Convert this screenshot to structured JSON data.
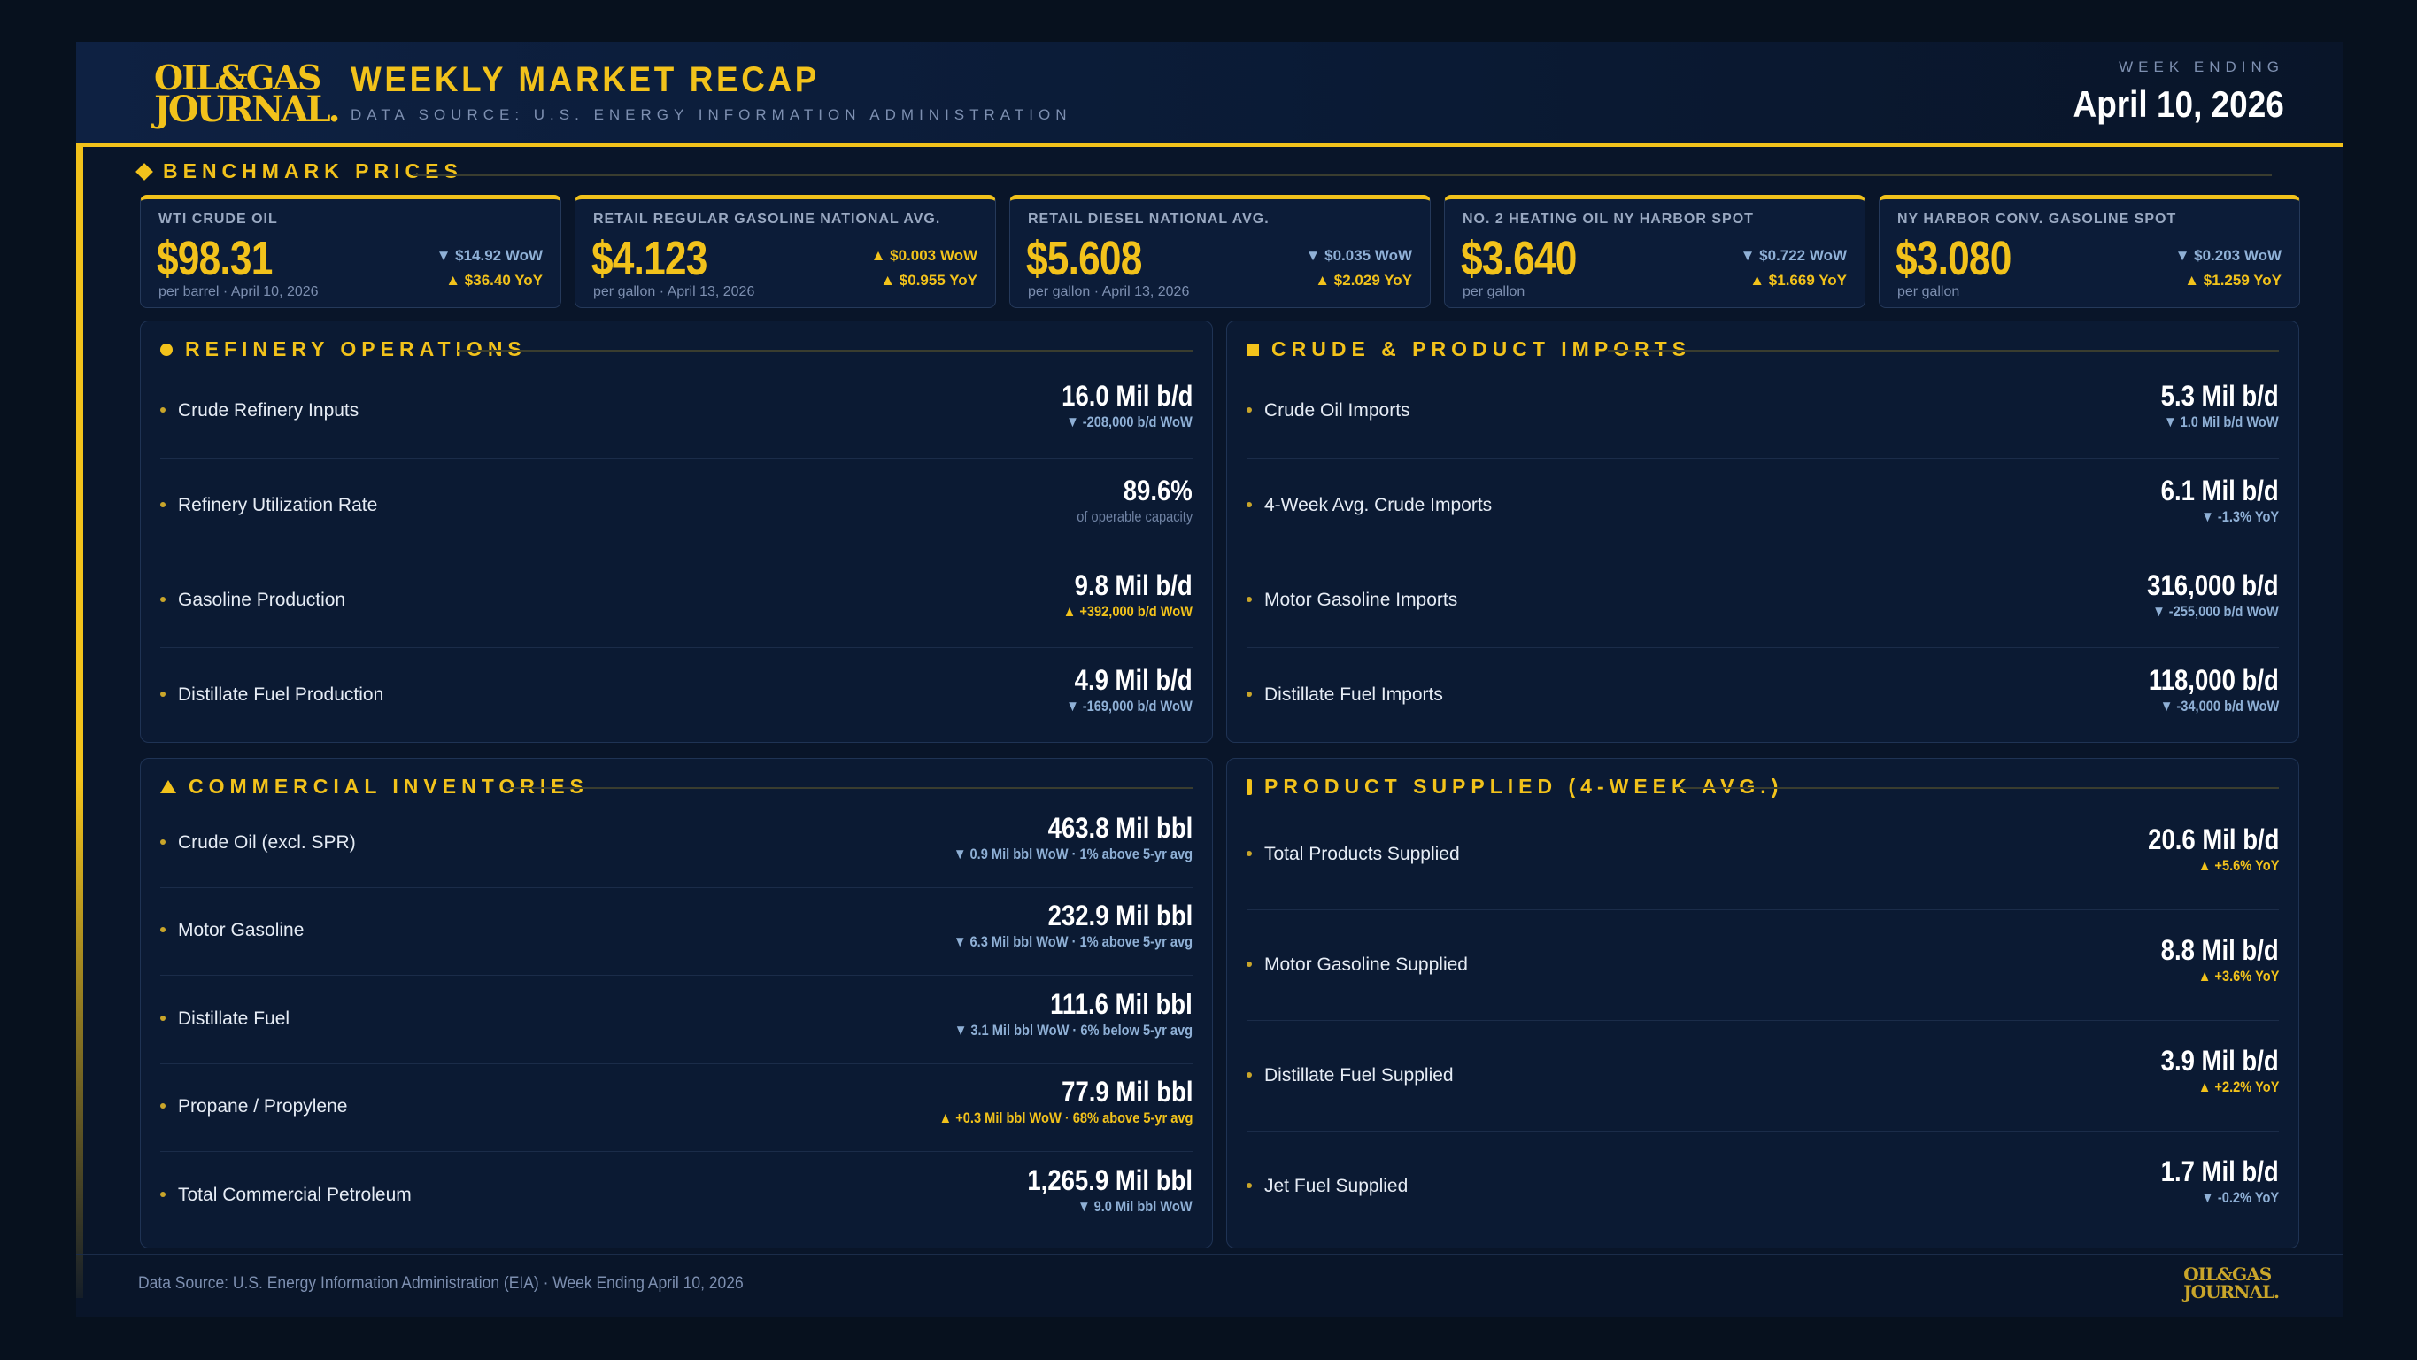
{
  "header": {
    "logo_line1": "OIL&GAS",
    "logo_line2": "JOURNAL.",
    "title": "WEEKLY MARKET RECAP",
    "subtitle": "DATA SOURCE: U.S. ENERGY INFORMATION ADMINISTRATION",
    "week_label": "WEEK ENDING",
    "week_date": "April 10, 2026"
  },
  "benchmark": {
    "title": "BENCHMARK PRICES",
    "cards": [
      {
        "label": "WTI CRUDE OIL",
        "value": "$98.31",
        "unit": "per barrel · April 10, 2026",
        "wow": "▼ $14.92 WoW",
        "wow_dir": "down",
        "yoy": "▲ $36.40 YoY",
        "yoy_dir": "up"
      },
      {
        "label": "RETAIL REGULAR GASOLINE NATIONAL AVG.",
        "value": "$4.123",
        "unit": "per gallon · April 13, 2026",
        "wow": "▲ $0.003 WoW",
        "wow_dir": "up",
        "yoy": "▲ $0.955 YoY",
        "yoy_dir": "up"
      },
      {
        "label": "RETAIL DIESEL NATIONAL AVG.",
        "value": "$5.608",
        "unit": "per gallon · April 13, 2026",
        "wow": "▼ $0.035 WoW",
        "wow_dir": "down",
        "yoy": "▲ $2.029 YoY",
        "yoy_dir": "up"
      },
      {
        "label": "NO. 2 HEATING OIL NY HARBOR SPOT",
        "value": "$3.640",
        "unit": "per gallon",
        "wow": "▼ $0.722 WoW",
        "wow_dir": "down",
        "yoy": "▲ $1.669 YoY",
        "yoy_dir": "up"
      },
      {
        "label": "NY HARBOR CONV. GASOLINE SPOT",
        "value": "$3.080",
        "unit": "per gallon",
        "wow": "▼ $0.203 WoW",
        "wow_dir": "down",
        "yoy": "▲ $1.259 YoY",
        "yoy_dir": "up"
      }
    ]
  },
  "refinery": {
    "title": "REFINERY OPERATIONS",
    "rows": [
      {
        "label": "Crude Refinery Inputs",
        "value": "16.0 Mil b/d",
        "sub": "▼ -208,000 b/d WoW",
        "dir": "down"
      },
      {
        "label": "Refinery Utilization Rate",
        "value": "89.6%",
        "sub": "of operable capacity",
        "dir": "muted"
      },
      {
        "label": "Gasoline Production",
        "value": "9.8 Mil b/d",
        "sub": "▲ +392,000 b/d WoW",
        "dir": "up"
      },
      {
        "label": "Distillate Fuel Production",
        "value": "4.9 Mil b/d",
        "sub": "▼ -169,000 b/d WoW",
        "dir": "down"
      }
    ]
  },
  "imports": {
    "title": "CRUDE & PRODUCT IMPORTS",
    "rows": [
      {
        "label": "Crude Oil Imports",
        "value": "5.3 Mil b/d",
        "sub": "▼ 1.0 Mil b/d WoW",
        "dir": "down"
      },
      {
        "label": "4-Week Avg. Crude Imports",
        "value": "6.1 Mil b/d",
        "sub": "▼ -1.3% YoY",
        "dir": "down"
      },
      {
        "label": "Motor Gasoline Imports",
        "value": "316,000 b/d",
        "sub": "▼ -255,000 b/d WoW",
        "dir": "down"
      },
      {
        "label": "Distillate Fuel Imports",
        "value": "118,000 b/d",
        "sub": "▼ -34,000 b/d WoW",
        "dir": "down"
      }
    ]
  },
  "inventories": {
    "title": "COMMERCIAL INVENTORIES",
    "rows": [
      {
        "label": "Crude Oil (excl. SPR)",
        "value": "463.8 Mil bbl",
        "sub": "▼ 0.9 Mil bbl WoW · 1% above 5-yr avg",
        "dir": "down"
      },
      {
        "label": "Motor Gasoline",
        "value": "232.9 Mil bbl",
        "sub": "▼ 6.3 Mil bbl WoW · 1% above 5-yr avg",
        "dir": "down"
      },
      {
        "label": "Distillate Fuel",
        "value": "111.6 Mil bbl",
        "sub": "▼ 3.1 Mil bbl WoW · 6% below 5-yr avg",
        "dir": "down"
      },
      {
        "label": "Propane / Propylene",
        "value": "77.9 Mil bbl",
        "sub": "▲ +0.3 Mil bbl WoW · 68% above 5-yr avg",
        "dir": "up"
      },
      {
        "label": "Total Commercial Petroleum",
        "value": "1,265.9 Mil bbl",
        "sub": "▼ 9.0 Mil bbl WoW",
        "dir": "down"
      }
    ]
  },
  "supplied": {
    "title": "PRODUCT SUPPLIED (4-WEEK AVG.)",
    "rows": [
      {
        "label": "Total Products Supplied",
        "value": "20.6 Mil b/d",
        "sub": "▲ +5.6% YoY",
        "dir": "up"
      },
      {
        "label": "Motor Gasoline Supplied",
        "value": "8.8 Mil b/d",
        "sub": "▲ +3.6% YoY",
        "dir": "up"
      },
      {
        "label": "Distillate Fuel Supplied",
        "value": "3.9 Mil b/d",
        "sub": "▲ +2.2% YoY",
        "dir": "up"
      },
      {
        "label": "Jet Fuel Supplied",
        "value": "1.7 Mil b/d",
        "sub": "▼ -0.2% YoY",
        "dir": "down"
      }
    ]
  },
  "footer": {
    "text": "Data Source: U.S. Energy Information Administration (EIA)  ·  Week Ending April 10, 2026",
    "logo_line1": "OIL&GAS",
    "logo_line2": "JOURNAL."
  },
  "colors": {
    "accent": "#f2c21b",
    "background": "#091529",
    "down": "#8fb0d6"
  }
}
